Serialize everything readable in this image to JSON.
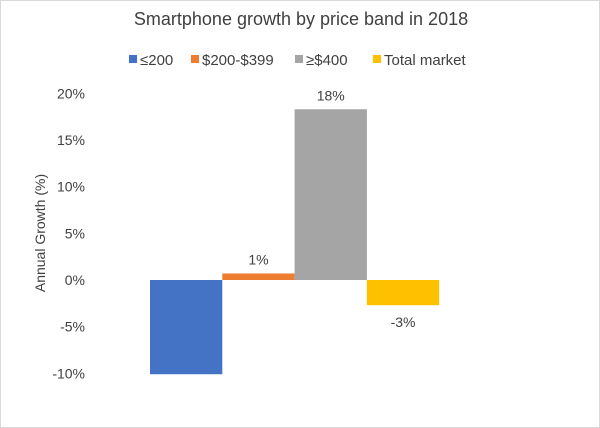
{
  "chart_data": {
    "type": "bar",
    "title": "Smartphone growth by price band in 2018",
    "xlabel": "",
    "ylabel": "Annual Growth (%)",
    "ylim": [
      -10,
      20
    ],
    "yticks": [
      "-10%",
      "-5%",
      "0%",
      "5%",
      "10%",
      "15%",
      "20%"
    ],
    "ytick_values": [
      -10,
      -5,
      0,
      5,
      10,
      15,
      20
    ],
    "grid": false,
    "legend_position": "top",
    "series": [
      {
        "name": "≤200",
        "value": -10.1,
        "label": "",
        "color": "#4472C4"
      },
      {
        "name": "$200-$399",
        "value": 0.7,
        "label": "1%",
        "color": "#ED7D31"
      },
      {
        "name": "≥$400",
        "value": 18.3,
        "label": "18%",
        "color": "#A5A5A5"
      },
      {
        "name": "Total market",
        "value": -2.7,
        "label": "-3%",
        "color": "#FFC000"
      }
    ]
  }
}
